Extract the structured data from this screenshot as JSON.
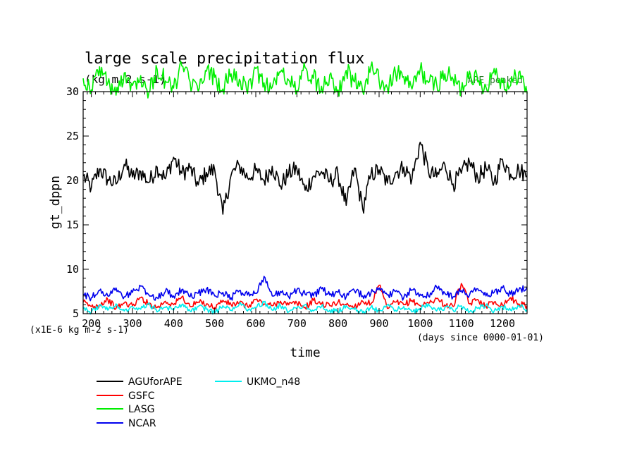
{
  "chart_data": {
    "type": "line",
    "title": "large scale precipitation flux",
    "units": "(kg m-2 s-1)",
    "annotation": "APE_peaked",
    "xlabel": "time",
    "ylabel": "gt_dppn",
    "x_units_note": "(days since 0000-01-01)",
    "y_scale_note": "(x1E-6 kg m-2 s-1)",
    "xlim": [
      180,
      1260
    ],
    "ylim": [
      5,
      30
    ],
    "x_ticks": [
      "200",
      "300",
      "400",
      "500",
      "600",
      "700",
      "800",
      "900",
      "1000",
      "1100",
      "1200"
    ],
    "y_ticks": [
      "5",
      "10",
      "15",
      "20",
      "25",
      "30"
    ],
    "legend_placement": "below",
    "grid": false,
    "series": [
      {
        "name": "AGUforAPE",
        "color": "#000000",
        "x": [
          180,
          200,
          220,
          240,
          260,
          280,
          300,
          320,
          340,
          360,
          380,
          400,
          420,
          440,
          460,
          480,
          500,
          520,
          540,
          560,
          580,
          600,
          620,
          640,
          660,
          680,
          700,
          720,
          740,
          760,
          780,
          800,
          820,
          840,
          860,
          880,
          900,
          920,
          940,
          960,
          980,
          1000,
          1020,
          1040,
          1060,
          1080,
          1100,
          1120,
          1140,
          1160,
          1180,
          1200,
          1220,
          1240,
          1260
        ],
        "values": [
          20.5,
          19.2,
          21.3,
          20.1,
          19.6,
          21.8,
          20.4,
          21.0,
          19.8,
          21.5,
          20.2,
          22.6,
          20.8,
          21.4,
          19.5,
          20.9,
          21.2,
          16.2,
          20.6,
          21.7,
          20.3,
          21.1,
          20.0,
          21.6,
          19.4,
          20.8,
          21.3,
          18.9,
          20.5,
          21.0,
          19.9,
          20.7,
          17.2,
          21.4,
          16.8,
          20.6,
          21.2,
          19.7,
          20.9,
          21.5,
          20.2,
          24.3,
          21.0,
          20.4,
          21.8,
          19.6,
          20.8,
          22.1,
          20.3,
          21.4,
          19.8,
          22.4,
          20.7,
          21.2,
          20.5
        ]
      },
      {
        "name": "GSFC",
        "color": "#ff0000",
        "x": [
          180,
          200,
          220,
          240,
          260,
          280,
          300,
          320,
          340,
          360,
          380,
          400,
          420,
          440,
          460,
          480,
          500,
          520,
          540,
          560,
          580,
          600,
          620,
          640,
          660,
          680,
          700,
          720,
          740,
          760,
          780,
          800,
          820,
          840,
          860,
          880,
          900,
          920,
          940,
          960,
          980,
          1000,
          1020,
          1040,
          1060,
          1080,
          1100,
          1120,
          1140,
          1160,
          1180,
          1200,
          1220,
          1240,
          1260
        ],
        "values": [
          6.3,
          5.8,
          6.0,
          6.6,
          5.6,
          6.2,
          5.9,
          6.8,
          6.1,
          5.7,
          6.4,
          6.0,
          6.9,
          5.8,
          6.3,
          6.1,
          5.7,
          6.5,
          6.0,
          6.2,
          5.8,
          6.6,
          6.1,
          5.9,
          6.4,
          6.0,
          6.2,
          5.7,
          6.5,
          6.1,
          5.9,
          6.3,
          6.0,
          5.8,
          6.4,
          6.1,
          8.2,
          5.6,
          6.3,
          6.0,
          6.5,
          5.9,
          6.2,
          6.7,
          6.0,
          5.8,
          8.4,
          6.1,
          6.6,
          5.9,
          6.3,
          6.0,
          6.8,
          6.1,
          5.9
        ]
      },
      {
        "name": "LASG",
        "color": "#00ee00",
        "x": [
          180,
          200,
          220,
          240,
          260,
          280,
          300,
          320,
          340,
          360,
          380,
          400,
          420,
          440,
          460,
          480,
          500,
          520,
          540,
          560,
          580,
          600,
          620,
          640,
          660,
          680,
          700,
          720,
          740,
          760,
          780,
          800,
          820,
          840,
          860,
          880,
          900,
          920,
          940,
          960,
          980,
          1000,
          1020,
          1040,
          1060,
          1080,
          1100,
          1120,
          1140,
          1160,
          1180,
          1200,
          1220,
          1240,
          1260
        ],
        "values": [
          31.5,
          30.2,
          32.8,
          31.0,
          29.6,
          32.1,
          30.7,
          31.8,
          29.9,
          32.5,
          31.2,
          30.4,
          32.9,
          31.1,
          30.0,
          32.3,
          31.6,
          30.3,
          32.0,
          31.4,
          29.8,
          32.6,
          31.0,
          30.5,
          32.2,
          31.3,
          30.1,
          32.7,
          31.5,
          30.6,
          31.9,
          30.2,
          32.4,
          31.1,
          30.0,
          32.8,
          31.2,
          30.4,
          32.1,
          31.7,
          30.3,
          32.5,
          31.0,
          30.8,
          32.0,
          31.4,
          30.2,
          32.3,
          31.1,
          30.5,
          32.6,
          31.0,
          30.7,
          32.2,
          29.8
        ]
      },
      {
        "name": "NCAR",
        "color": "#0000ee",
        "x": [
          180,
          200,
          220,
          240,
          260,
          280,
          300,
          320,
          340,
          360,
          380,
          400,
          420,
          440,
          460,
          480,
          500,
          520,
          540,
          560,
          580,
          600,
          620,
          640,
          660,
          680,
          700,
          720,
          740,
          760,
          780,
          800,
          820,
          840,
          860,
          880,
          900,
          920,
          940,
          960,
          980,
          1000,
          1020,
          1040,
          1060,
          1080,
          1100,
          1120,
          1140,
          1160,
          1180,
          1200,
          1220,
          1240,
          1260
        ],
        "values": [
          7.2,
          6.8,
          7.6,
          7.0,
          7.9,
          6.9,
          7.4,
          8.1,
          7.1,
          6.8,
          7.5,
          7.0,
          7.7,
          6.9,
          7.3,
          7.8,
          7.0,
          7.4,
          6.8,
          7.6,
          7.1,
          7.3,
          9.2,
          7.0,
          7.5,
          6.9,
          7.7,
          7.2,
          7.0,
          7.8,
          7.1,
          7.4,
          6.9,
          7.6,
          7.0,
          7.3,
          7.9,
          7.1,
          7.5,
          6.8,
          7.7,
          7.2,
          7.0,
          8.0,
          7.3,
          6.9,
          7.6,
          7.1,
          7.8,
          7.0,
          7.4,
          7.9,
          7.2,
          7.7,
          8.0
        ]
      },
      {
        "name": "UKMO_n48",
        "color": "#00eeee",
        "x": [
          180,
          200,
          220,
          240,
          260,
          280,
          300,
          320,
          340,
          360,
          380,
          400,
          420,
          440,
          460,
          480,
          500,
          520,
          540,
          560,
          580,
          600,
          620,
          640,
          660,
          680,
          700,
          720,
          740,
          760,
          780,
          800,
          820,
          840,
          860,
          880,
          900,
          920,
          940,
          960,
          980,
          1000,
          1020,
          1040,
          1060,
          1080,
          1100,
          1120,
          1140,
          1160,
          1180,
          1200,
          1220,
          1240,
          1260
        ],
        "values": [
          5.6,
          5.2,
          5.9,
          5.4,
          6.1,
          5.3,
          5.8,
          5.5,
          6.2,
          5.2,
          5.7,
          5.4,
          6.0,
          5.3,
          5.8,
          5.5,
          5.1,
          5.9,
          5.4,
          6.1,
          5.3,
          5.7,
          6.3,
          5.4,
          5.9,
          5.2,
          5.6,
          6.0,
          5.3,
          5.8,
          5.4,
          5.2,
          5.9,
          5.5,
          5.1,
          5.7,
          5.3,
          6.0,
          5.4,
          5.8,
          5.2,
          5.6,
          6.1,
          5.3,
          5.7,
          5.4,
          5.9,
          5.2,
          5.6,
          6.0,
          5.3,
          5.8,
          5.4,
          5.9,
          5.5
        ]
      }
    ]
  }
}
